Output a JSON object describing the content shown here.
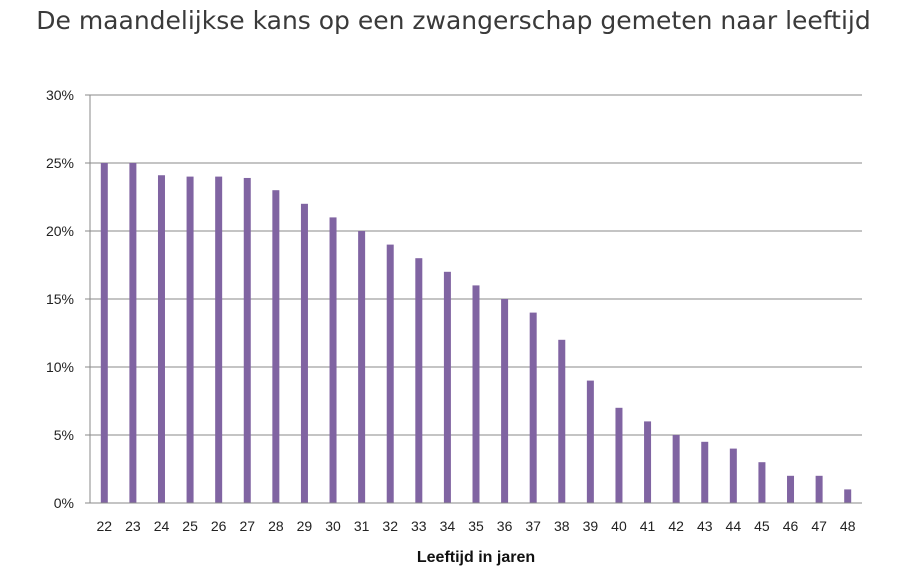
{
  "chart_data": {
    "type": "bar",
    "title": "De maandelijkse kans op een zwangerschap gemeten naar leeftijd",
    "xlabel": "Leeftijd in jaren",
    "ylabel": "",
    "ylim": [
      0,
      30
    ],
    "yticks": [
      "0%",
      "5%",
      "10%",
      "15%",
      "20%",
      "25%",
      "30%"
    ],
    "grid": true,
    "bar_color": "#8064a2",
    "categories": [
      "22",
      "23",
      "24",
      "25",
      "26",
      "27",
      "28",
      "29",
      "30",
      "31",
      "32",
      "33",
      "34",
      "35",
      "36",
      "37",
      "38",
      "39",
      "40",
      "41",
      "42",
      "43",
      "44",
      "45",
      "46",
      "47",
      "48"
    ],
    "values": [
      25,
      25,
      24.1,
      24,
      24,
      23.9,
      23,
      22,
      21,
      20,
      19,
      18,
      17,
      16,
      15,
      14,
      12,
      9,
      7,
      6,
      5,
      4.5,
      4,
      3,
      2,
      2,
      1
    ]
  }
}
